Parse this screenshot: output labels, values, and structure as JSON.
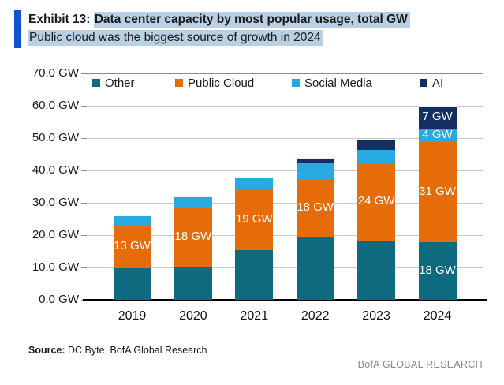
{
  "header": {
    "exhibit_label": "Exhibit 13:",
    "title": "Data center capacity by most popular usage, total GW",
    "subtitle": "Public cloud was the biggest source of growth in 2024",
    "accent_color": "#1154D1",
    "highlight_color": "#B9CFE4"
  },
  "chart_data": {
    "type": "bar",
    "stacked": true,
    "title": "Data center capacity by most popular usage, total GW",
    "categories": [
      "2019",
      "2020",
      "2021",
      "2022",
      "2023",
      "2024"
    ],
    "series": [
      {
        "name": "Other",
        "color": "#0E6A7E",
        "values": [
          10,
          10.5,
          15.5,
          19.5,
          18.5,
          18
        ]
      },
      {
        "name": "Public Cloud",
        "color": "#E66C0A",
        "values": [
          13,
          18,
          19,
          18,
          24,
          31
        ]
      },
      {
        "name": "Social Media",
        "color": "#29A9E1",
        "values": [
          3,
          3.5,
          3.5,
          5,
          4,
          4
        ]
      },
      {
        "name": "AI",
        "color": "#132F62",
        "values": [
          0,
          0,
          0,
          1.5,
          3,
          7
        ]
      }
    ],
    "bar_labels": [
      {
        "category": "2019",
        "series": "Public Cloud",
        "text": "13 GW"
      },
      {
        "category": "2020",
        "series": "Public Cloud",
        "text": "18 GW"
      },
      {
        "category": "2021",
        "series": "Public Cloud",
        "text": "19 GW"
      },
      {
        "category": "2022",
        "series": "Public Cloud",
        "text": "18 GW"
      },
      {
        "category": "2023",
        "series": "Public Cloud",
        "text": "24 GW"
      },
      {
        "category": "2024",
        "series": "Public Cloud",
        "text": "31 GW"
      },
      {
        "category": "2024",
        "series": "Other",
        "text": "18 GW"
      },
      {
        "category": "2024",
        "series": "Social Media",
        "text": "4 GW"
      },
      {
        "category": "2024",
        "series": "AI",
        "text": "7 GW"
      }
    ],
    "yticks": [
      "0.0 GW",
      "10.0 GW",
      "20.0 GW",
      "30.0 GW",
      "40.0 GW",
      "50.0 GW",
      "60.0 GW",
      "70.0 GW"
    ],
    "ytick_step": 10,
    "ylim": [
      0,
      70
    ],
    "grid": "horizontal",
    "legend_position": "top"
  },
  "footer": {
    "source_label": "Source:",
    "source_text": " DC Byte, BofA Global Research",
    "brand": "BofA GLOBAL RESEARCH"
  }
}
